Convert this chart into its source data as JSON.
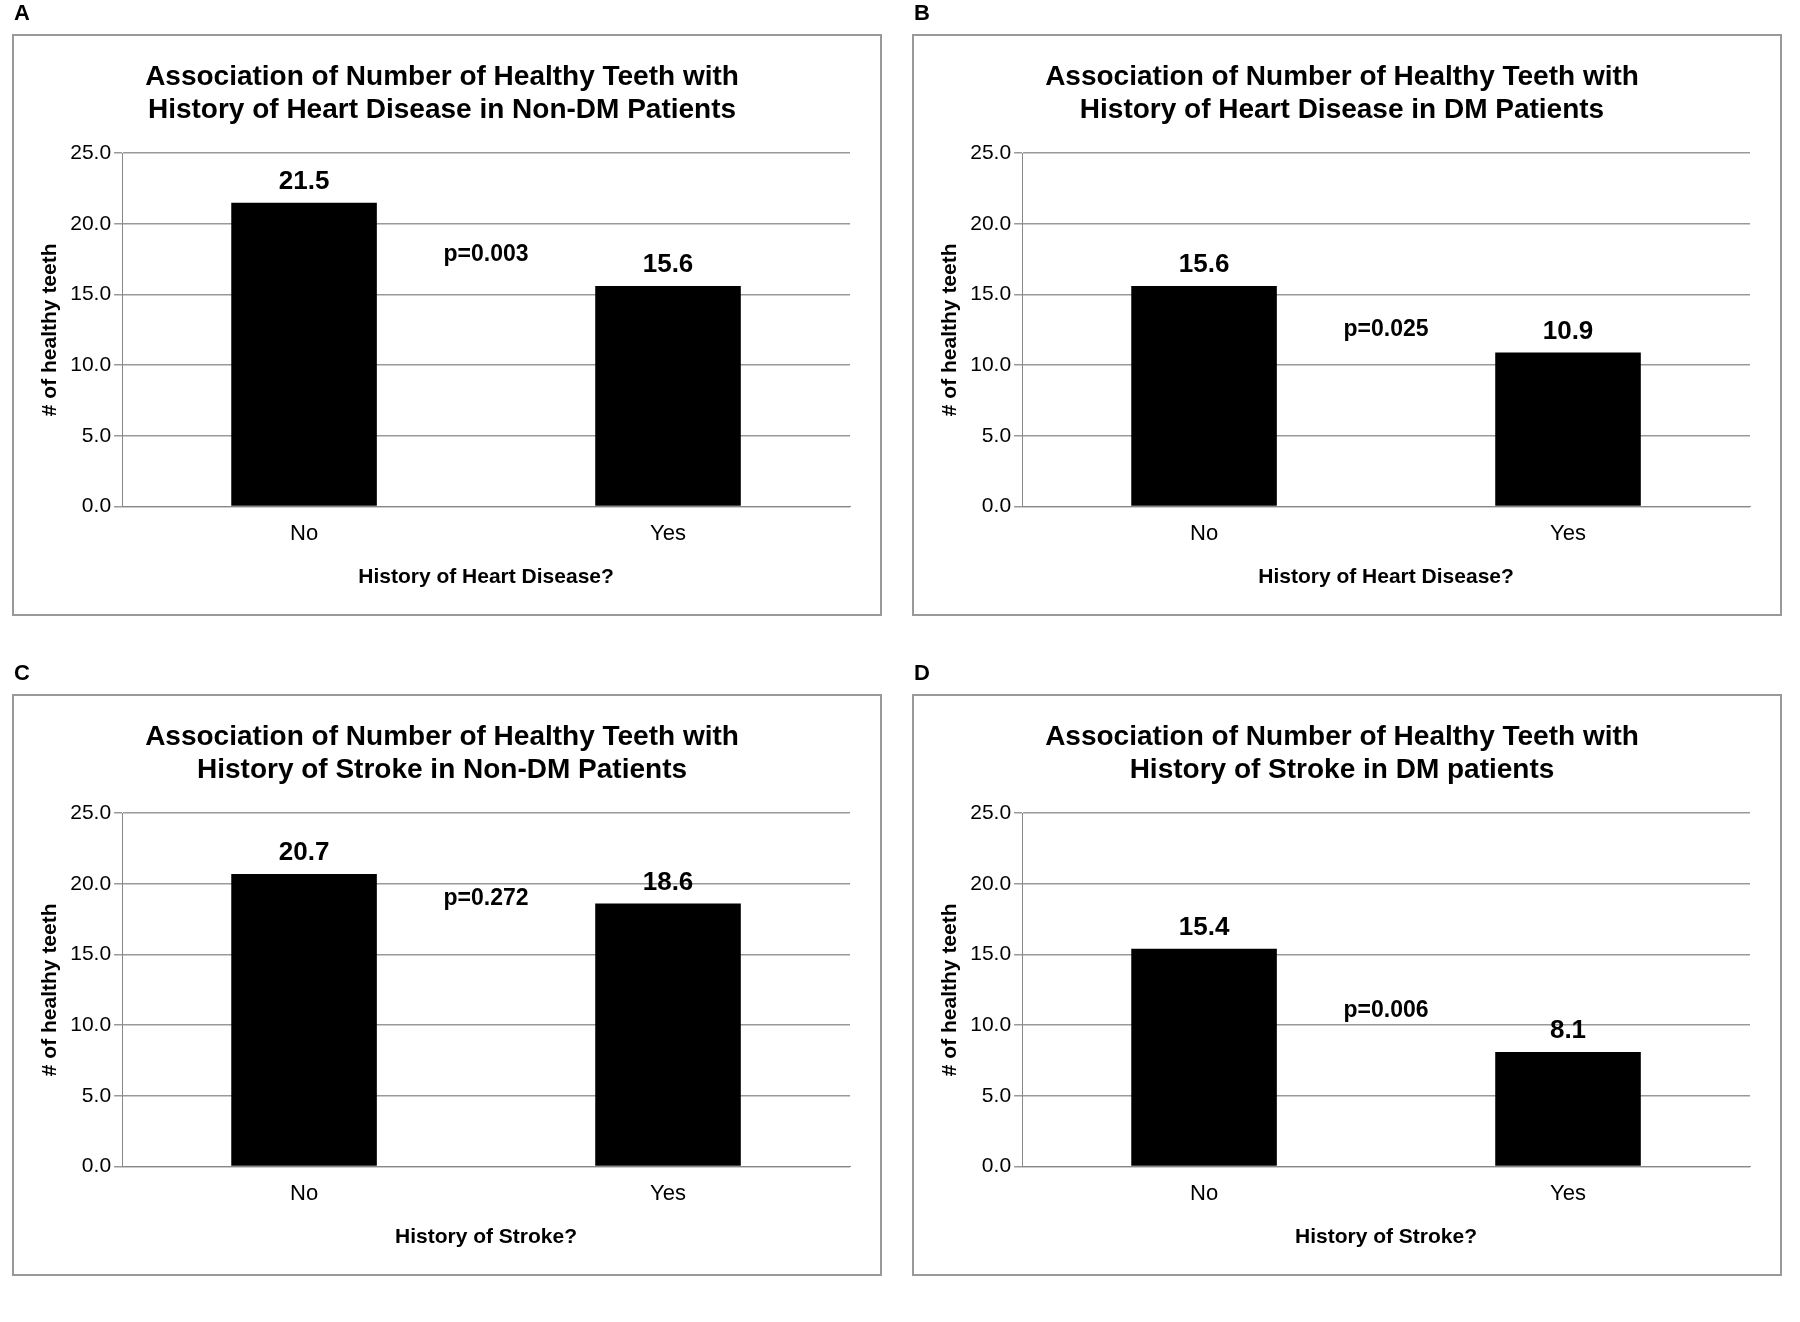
{
  "chart_data": [
    {
      "type": "bar",
      "title": "Association of Number of Healthy Teeth with History of Heart Disease in Non-DM Patients",
      "xlabel": "History of Heart Disease?",
      "ylabel": "# of healthy teeth",
      "categories": [
        "No",
        "Yes"
      ],
      "values": [
        21.5,
        15.6
      ],
      "color": "#000000",
      "ylim": [
        0,
        25
      ],
      "yticks": [
        {
          "value": 0,
          "label": "0.0"
        },
        {
          "value": 5,
          "label": "5.0"
        },
        {
          "value": 10,
          "label": "10.0"
        },
        {
          "value": 15,
          "label": "15.0"
        },
        {
          "value": 20,
          "label": "20.0"
        },
        {
          "value": 25,
          "label": "25.0"
        }
      ],
      "grid": "y",
      "data_labels": true,
      "annotations": [
        "A",
        "p=0.003"
      ]
    },
    {
      "type": "bar",
      "title": "Association of Number of Healthy Teeth with History of Heart Disease in DM Patients",
      "xlabel": "History of Heart Disease?",
      "ylabel": "# of healthy teeth",
      "categories": [
        "No",
        "Yes"
      ],
      "values": [
        15.6,
        10.9
      ],
      "color": "#000000",
      "ylim": [
        0,
        25
      ],
      "yticks": [
        {
          "value": 0,
          "label": "0.0"
        },
        {
          "value": 5,
          "label": "5.0"
        },
        {
          "value": 10,
          "label": "10.0"
        },
        {
          "value": 15,
          "label": "15.0"
        },
        {
          "value": 20,
          "label": "20.0"
        },
        {
          "value": 25,
          "label": "25.0"
        }
      ],
      "grid": "y",
      "data_labels": true,
      "annotations": [
        "B",
        "p=0.025"
      ]
    },
    {
      "type": "bar",
      "title": "Association of Number of Healthy Teeth with History of Stroke in Non-DM Patients",
      "xlabel": "History of Stroke?",
      "ylabel": "# of healthy teeth",
      "categories": [
        "No",
        "Yes"
      ],
      "values": [
        20.7,
        18.6
      ],
      "color": "#000000",
      "ylim": [
        0,
        25
      ],
      "yticks": [
        {
          "value": 0,
          "label": "0.0"
        },
        {
          "value": 5,
          "label": "5.0"
        },
        {
          "value": 10,
          "label": "10.0"
        },
        {
          "value": 15,
          "label": "15.0"
        },
        {
          "value": 20,
          "label": "20.0"
        },
        {
          "value": 25,
          "label": "25.0"
        }
      ],
      "grid": "y",
      "data_labels": true,
      "annotations": [
        "C",
        "p=0.272"
      ]
    },
    {
      "type": "bar",
      "title": "Association of Number of Healthy Teeth with History of Stroke in DM patients",
      "xlabel": "History of Stroke?",
      "ylabel": "# of healthy teeth",
      "categories": [
        "No",
        "Yes"
      ],
      "values": [
        15.4,
        8.1
      ],
      "color": "#000000",
      "ylim": [
        0,
        25
      ],
      "yticks": [
        {
          "value": 0,
          "label": "0.0"
        },
        {
          "value": 5,
          "label": "5.0"
        },
        {
          "value": 10,
          "label": "10.0"
        },
        {
          "value": 15,
          "label": "15.0"
        },
        {
          "value": 20,
          "label": "20.0"
        },
        {
          "value": 25,
          "label": "25.0"
        }
      ],
      "grid": "y",
      "data_labels": true,
      "annotations": [
        "D",
        "p=0.006"
      ]
    }
  ]
}
